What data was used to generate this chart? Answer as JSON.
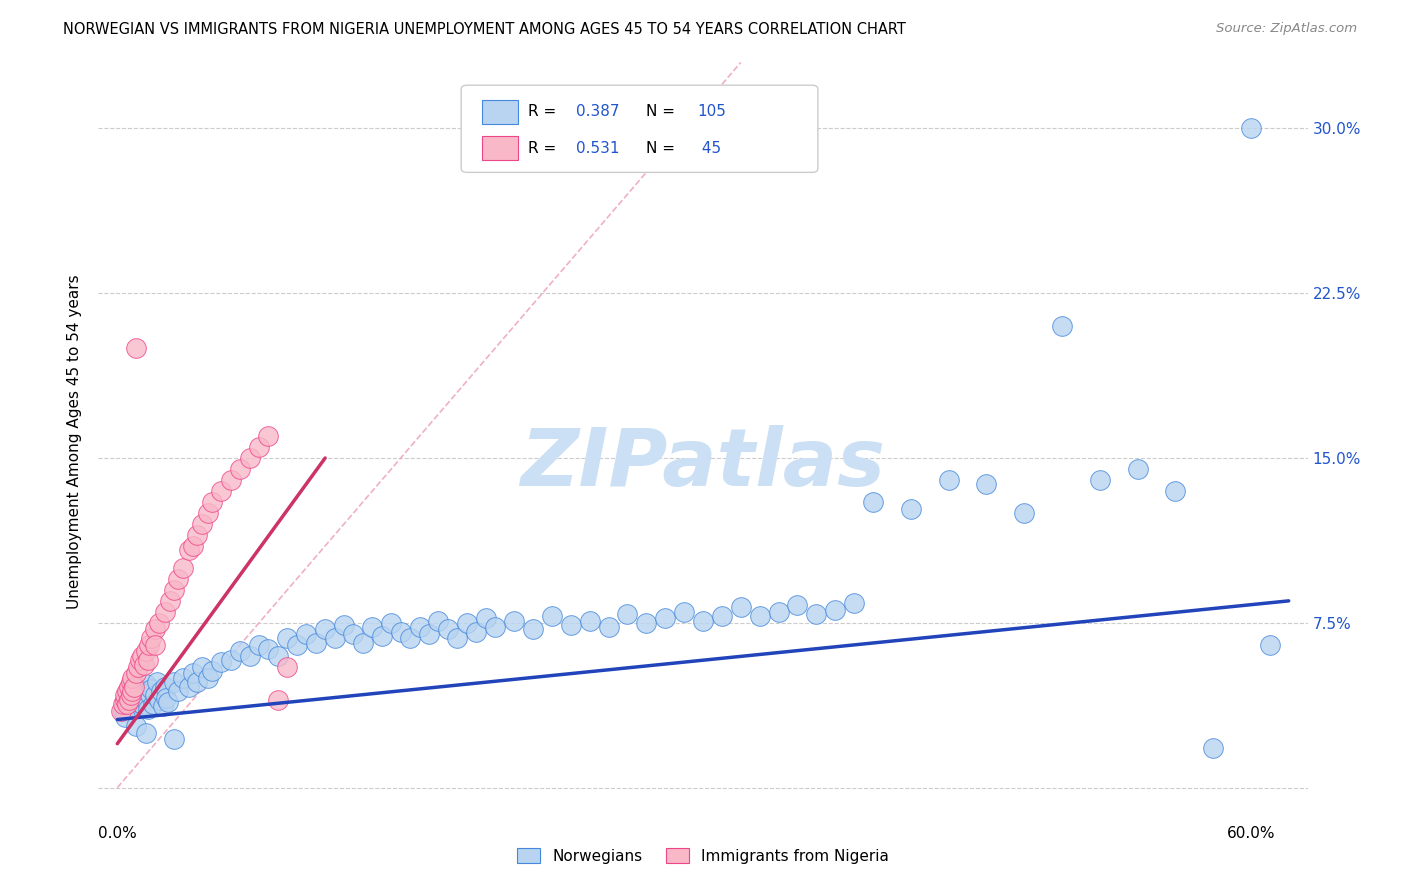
{
  "title": "NORWEGIAN VS IMMIGRANTS FROM NIGERIA UNEMPLOYMENT AMONG AGES 45 TO 54 YEARS CORRELATION CHART",
  "source": "Source: ZipAtlas.com",
  "ylabel": "Unemployment Among Ages 45 to 54 years",
  "legend_items": [
    "Norwegians",
    "Immigrants from Nigeria"
  ],
  "legend_R": [
    "0.387",
    "0.531"
  ],
  "legend_N": [
    "105",
    "45"
  ],
  "blue_fill": "#b8d4f0",
  "blue_edge": "#4488dd",
  "pink_fill": "#f8b8c8",
  "pink_edge": "#ee4488",
  "blue_line": "#2244bb",
  "pink_line": "#cc3366",
  "diag_color": "#f0b0c0",
  "right_axis_color": "#2255cc",
  "watermark_color": "#cce0f5",
  "nor_x": [
    0.004,
    0.005,
    0.005,
    0.006,
    0.006,
    0.007,
    0.007,
    0.008,
    0.008,
    0.009,
    0.01,
    0.01,
    0.011,
    0.012,
    0.013,
    0.014,
    0.015,
    0.015,
    0.016,
    0.017,
    0.018,
    0.019,
    0.02,
    0.021,
    0.022,
    0.023,
    0.024,
    0.025,
    0.026,
    0.027,
    0.03,
    0.032,
    0.035,
    0.038,
    0.04,
    0.042,
    0.045,
    0.048,
    0.05,
    0.055,
    0.06,
    0.065,
    0.07,
    0.075,
    0.08,
    0.085,
    0.09,
    0.095,
    0.1,
    0.105,
    0.11,
    0.115,
    0.12,
    0.125,
    0.13,
    0.135,
    0.14,
    0.145,
    0.15,
    0.155,
    0.16,
    0.165,
    0.17,
    0.175,
    0.18,
    0.185,
    0.19,
    0.195,
    0.2,
    0.21,
    0.22,
    0.23,
    0.24,
    0.25,
    0.26,
    0.27,
    0.28,
    0.29,
    0.3,
    0.31,
    0.32,
    0.33,
    0.34,
    0.35,
    0.36,
    0.37,
    0.38,
    0.39,
    0.4,
    0.42,
    0.44,
    0.46,
    0.48,
    0.5,
    0.52,
    0.54,
    0.56,
    0.58,
    0.6,
    0.61,
    0.003,
    0.004,
    0.01,
    0.015,
    0.03
  ],
  "nor_y": [
    0.038,
    0.04,
    0.042,
    0.036,
    0.044,
    0.038,
    0.045,
    0.04,
    0.043,
    0.037,
    0.041,
    0.046,
    0.039,
    0.042,
    0.038,
    0.044,
    0.04,
    0.047,
    0.036,
    0.043,
    0.045,
    0.038,
    0.042,
    0.048,
    0.04,
    0.044,
    0.037,
    0.046,
    0.041,
    0.039,
    0.048,
    0.044,
    0.05,
    0.046,
    0.052,
    0.048,
    0.055,
    0.05,
    0.053,
    0.057,
    0.058,
    0.062,
    0.06,
    0.065,
    0.063,
    0.06,
    0.068,
    0.065,
    0.07,
    0.066,
    0.072,
    0.068,
    0.074,
    0.07,
    0.066,
    0.073,
    0.069,
    0.075,
    0.071,
    0.068,
    0.073,
    0.07,
    0.076,
    0.072,
    0.068,
    0.075,
    0.071,
    0.077,
    0.073,
    0.076,
    0.072,
    0.078,
    0.074,
    0.076,
    0.073,
    0.079,
    0.075,
    0.077,
    0.08,
    0.076,
    0.078,
    0.082,
    0.078,
    0.08,
    0.083,
    0.079,
    0.081,
    0.084,
    0.13,
    0.127,
    0.14,
    0.138,
    0.125,
    0.21,
    0.14,
    0.145,
    0.135,
    0.018,
    0.3,
    0.065,
    0.035,
    0.032,
    0.028,
    0.025,
    0.022
  ],
  "nig_x": [
    0.002,
    0.003,
    0.004,
    0.004,
    0.005,
    0.005,
    0.006,
    0.006,
    0.007,
    0.007,
    0.008,
    0.008,
    0.009,
    0.01,
    0.011,
    0.012,
    0.013,
    0.014,
    0.015,
    0.016,
    0.017,
    0.018,
    0.02,
    0.022,
    0.025,
    0.028,
    0.03,
    0.032,
    0.035,
    0.038,
    0.04,
    0.042,
    0.045,
    0.048,
    0.05,
    0.055,
    0.06,
    0.065,
    0.07,
    0.075,
    0.08,
    0.085,
    0.09,
    0.01,
    0.02
  ],
  "nig_y": [
    0.035,
    0.038,
    0.04,
    0.042,
    0.038,
    0.044,
    0.04,
    0.046,
    0.042,
    0.048,
    0.044,
    0.05,
    0.046,
    0.052,
    0.055,
    0.058,
    0.06,
    0.056,
    0.062,
    0.058,
    0.065,
    0.068,
    0.072,
    0.075,
    0.08,
    0.085,
    0.09,
    0.095,
    0.1,
    0.108,
    0.11,
    0.115,
    0.12,
    0.125,
    0.13,
    0.135,
    0.14,
    0.145,
    0.15,
    0.155,
    0.16,
    0.04,
    0.055,
    0.2,
    0.065
  ],
  "nor_line_x": [
    0.0,
    0.62
  ],
  "nor_line_y": [
    0.031,
    0.085
  ],
  "nig_line_x": [
    0.0,
    0.11
  ],
  "nig_line_y": [
    0.02,
    0.15
  ],
  "xlim": [
    -0.01,
    0.63
  ],
  "ylim": [
    -0.015,
    0.33
  ],
  "x_ticks": [
    0.0,
    0.1,
    0.2,
    0.3,
    0.4,
    0.5,
    0.6
  ],
  "x_tick_labels": [
    "0.0%",
    "",
    "",
    "",
    "",
    "",
    "60.0%"
  ],
  "y_ticks": [
    0.0,
    0.075,
    0.15,
    0.225,
    0.3
  ],
  "y_tick_labels_right": [
    "",
    "7.5%",
    "15.0%",
    "22.5%",
    "30.0%"
  ]
}
